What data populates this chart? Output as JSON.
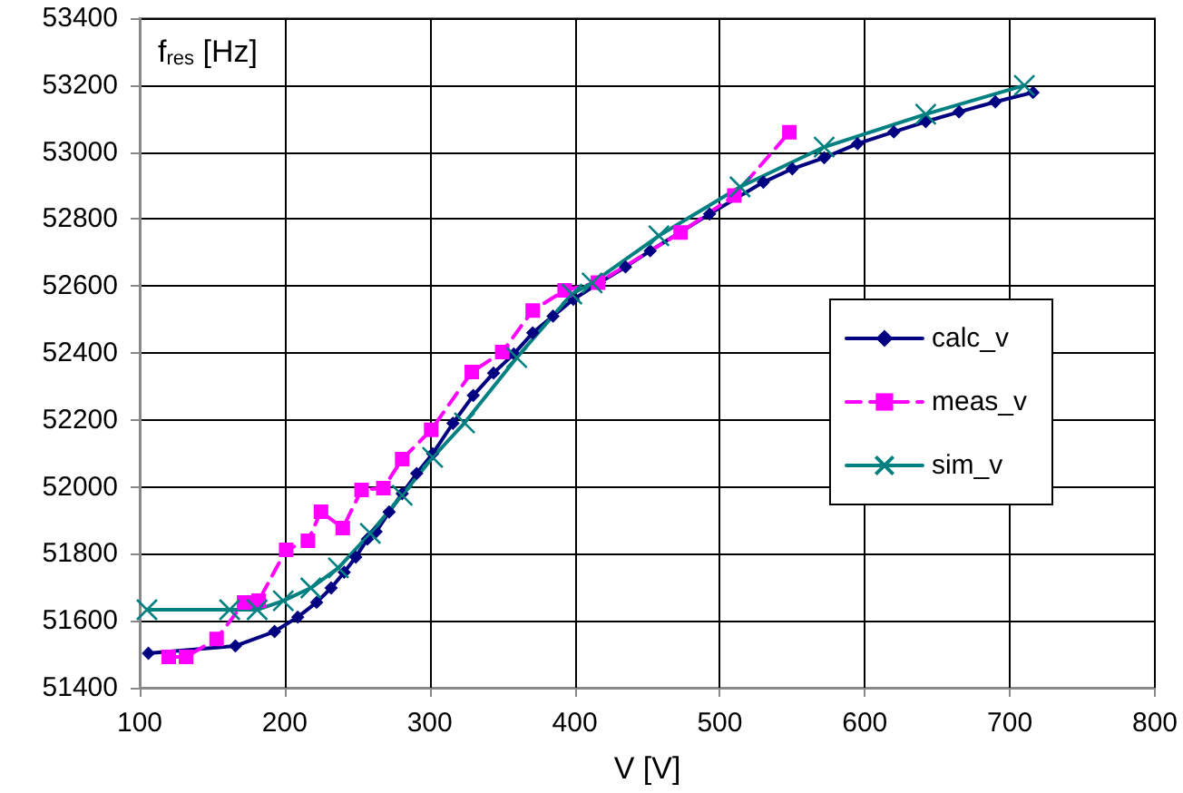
{
  "chart_data": {
    "type": "line",
    "xlabel": "V [V]",
    "ylabel": "f$_{res}$ [Hz]",
    "xlim": [
      100,
      800
    ],
    "xticks": [
      100,
      200,
      300,
      400,
      500,
      600,
      700,
      800
    ],
    "ylim": [
      51400,
      53400
    ],
    "yticks": [
      51400,
      51600,
      51800,
      52000,
      52200,
      52400,
      52600,
      52800,
      53000,
      53200,
      53400
    ],
    "grid": true,
    "legend": "right",
    "series": [
      {
        "name": "calc_v",
        "color": "#000080",
        "marker": "diamond",
        "line_style": "solid",
        "x": [
          106,
          166,
          193,
          209,
          222,
          232,
          241,
          249,
          257,
          263,
          272,
          281,
          291,
          302,
          316,
          330,
          344,
          358,
          371,
          385,
          399,
          417,
          435,
          452,
          493,
          530,
          550,
          572,
          595,
          620,
          642,
          665,
          690,
          716
        ],
        "values": [
          51503,
          51525,
          51568,
          51611,
          51655,
          51698,
          51745,
          51790,
          51844,
          51866,
          51925,
          51980,
          52040,
          52099,
          52190,
          52273,
          52340,
          52397,
          52460,
          52510,
          52560,
          52610,
          52657,
          52705,
          52815,
          52910,
          52950,
          52983,
          53025,
          53060,
          53091,
          53120,
          53150,
          53178
        ]
      },
      {
        "name": "meas_v",
        "color": "#ff00ff",
        "marker": "square",
        "line_style": "dashed",
        "x": [
          120,
          132,
          153,
          172,
          182,
          201,
          216,
          225,
          240,
          253,
          268,
          281,
          301,
          329,
          350,
          371,
          393,
          416,
          473,
          510,
          548
        ],
        "values": [
          51492,
          51492,
          51546,
          51655,
          51660,
          51812,
          51839,
          51926,
          51877,
          51991,
          51996,
          52083,
          52170,
          52343,
          52403,
          52527,
          52587,
          52610,
          52760,
          52870,
          53059
        ]
      },
      {
        "name": "sim_v",
        "color": "#008080",
        "marker": "cross",
        "line_style": "solid",
        "x": [
          105,
          162,
          181,
          199,
          218,
          237,
          259,
          281,
          302,
          324,
          360,
          398,
          412,
          458,
          514,
          572,
          642,
          710
        ],
        "values": [
          51633,
          51633,
          51633,
          51660,
          51698,
          51758,
          51861,
          51975,
          52088,
          52191,
          52386,
          52576,
          52609,
          52750,
          52896,
          53015,
          53113,
          53199
        ]
      }
    ]
  }
}
